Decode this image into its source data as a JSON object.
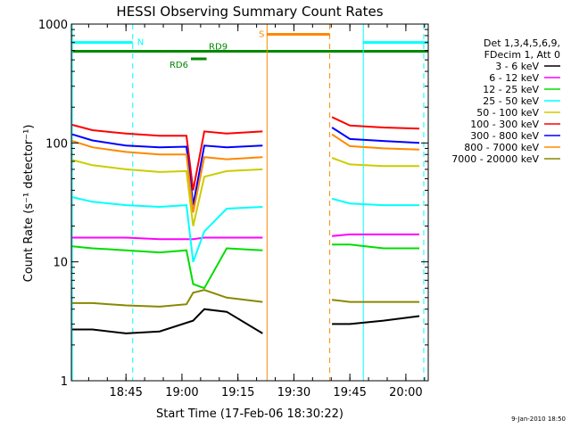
{
  "chart_data": {
    "type": "line",
    "title": "HESSI Observing Summary Count Rates",
    "xlabel": "Start Time (17-Feb-06 18:30:22)",
    "ylabel": "Count Rate (s⁻¹ detector⁻¹)",
    "yscale": "log",
    "ylim": [
      1,
      1000
    ],
    "xlim": [
      18.5061,
      20.1
    ],
    "x_ticks": [
      {
        "value": 18.75,
        "label": "18:45"
      },
      {
        "value": 19.0,
        "label": "19:00"
      },
      {
        "value": 19.25,
        "label": "19:15"
      },
      {
        "value": 19.5,
        "label": "19:30"
      },
      {
        "value": 19.75,
        "label": "19:45"
      },
      {
        "value": 20.0,
        "label": "20:00"
      }
    ],
    "y_ticks": [
      {
        "value": 1,
        "label": "1"
      },
      {
        "value": 10,
        "label": "10"
      },
      {
        "value": 100,
        "label": "100"
      },
      {
        "value": 1000,
        "label": "1000"
      }
    ],
    "legend": {
      "placement": "right",
      "header": [
        "Det 1,3,4,5,6,9,",
        "FDecim 1, Att 0"
      ],
      "entries": [
        {
          "name": "3 - 6 keV",
          "color": "#000000"
        },
        {
          "name": "6 - 12 keV",
          "color": "#ff00ff"
        },
        {
          "name": "12 - 25 keV",
          "color": "#00dd00"
        },
        {
          "name": "25 - 50 keV",
          "color": "#00ffff"
        },
        {
          "name": "50 - 100 keV",
          "color": "#cccc00"
        },
        {
          "name": "100 - 300 keV",
          "color": "#ff0000"
        },
        {
          "name": "300 - 800 keV",
          "color": "#0000ff"
        },
        {
          "name": "800 - 7000 keV",
          "color": "#ff8800"
        },
        {
          "name": "7000 - 20000 keV",
          "color": "#888800"
        }
      ]
    },
    "gaps": [
      [
        19.38,
        19.66
      ]
    ],
    "series": [
      {
        "name": "3 - 6 keV",
        "color": "#000000",
        "x": [
          18.51,
          18.6,
          18.75,
          18.9,
          19.05,
          19.1,
          19.2,
          19.36,
          19.67,
          19.75,
          19.9,
          20.06
        ],
        "y": [
          2.7,
          2.7,
          2.5,
          2.6,
          3.2,
          4.0,
          3.8,
          2.5,
          3.0,
          3.0,
          3.2,
          3.5
        ]
      },
      {
        "name": "6 - 12 keV",
        "color": "#ff00ff",
        "x": [
          18.51,
          18.6,
          18.75,
          18.9,
          19.05,
          19.1,
          19.2,
          19.36,
          19.67,
          19.75,
          19.9,
          20.06
        ],
        "y": [
          16,
          16,
          16,
          15.5,
          15.5,
          16,
          16,
          16,
          16.5,
          17,
          17,
          17
        ]
      },
      {
        "name": "12 - 25 keV",
        "color": "#00dd00",
        "x": [
          18.51,
          18.6,
          18.75,
          18.9,
          19.02,
          19.05,
          19.1,
          19.2,
          19.36,
          19.67,
          19.75,
          19.9,
          20.06
        ],
        "y": [
          13.5,
          13,
          12.5,
          12,
          12.5,
          6.5,
          6.0,
          13,
          12.5,
          14,
          14,
          13,
          13
        ]
      },
      {
        "name": "25 - 50 keV",
        "color": "#00ffff",
        "x": [
          18.51,
          18.6,
          18.75,
          18.9,
          19.02,
          19.05,
          19.1,
          19.2,
          19.36,
          19.67,
          19.75,
          19.9,
          20.06
        ],
        "y": [
          35,
          32,
          30,
          29,
          30,
          10,
          18,
          28,
          29,
          34,
          31,
          30,
          30
        ]
      },
      {
        "name": "50 - 100 keV",
        "color": "#cccc00",
        "x": [
          18.51,
          18.6,
          18.75,
          18.9,
          19.02,
          19.05,
          19.1,
          19.2,
          19.36,
          19.67,
          19.75,
          19.9,
          20.06
        ],
        "y": [
          72,
          65,
          60,
          57,
          58,
          20,
          52,
          58,
          60,
          75,
          66,
          64,
          64
        ]
      },
      {
        "name": "100 - 300 keV",
        "color": "#ff0000",
        "x": [
          18.51,
          18.6,
          18.75,
          18.9,
          19.02,
          19.05,
          19.1,
          19.2,
          19.36,
          19.67,
          19.75,
          19.9,
          20.06
        ],
        "y": [
          142,
          128,
          120,
          115,
          115,
          40,
          125,
          120,
          125,
          165,
          140,
          135,
          132
        ]
      },
      {
        "name": "300 - 800 keV",
        "color": "#0000ff",
        "x": [
          18.51,
          18.6,
          18.75,
          18.9,
          19.02,
          19.05,
          19.1,
          19.2,
          19.36,
          19.67,
          19.75,
          19.9,
          20.06
        ],
        "y": [
          118,
          105,
          95,
          92,
          93,
          30,
          95,
          92,
          95,
          135,
          108,
          104,
          100
        ]
      },
      {
        "name": "800 - 7000 keV",
        "color": "#ff8800",
        "x": [
          18.51,
          18.6,
          18.75,
          18.9,
          19.02,
          19.05,
          19.1,
          19.2,
          19.36,
          19.67,
          19.75,
          19.9,
          20.06
        ],
        "y": [
          104,
          92,
          84,
          80,
          80,
          26,
          76,
          73,
          76,
          118,
          94,
          90,
          88
        ]
      },
      {
        "name": "7000 - 20000 keV",
        "color": "#888800",
        "x": [
          18.51,
          18.6,
          18.75,
          18.9,
          19.02,
          19.05,
          19.1,
          19.2,
          19.36,
          19.67,
          19.75,
          19.9,
          20.06
        ],
        "y": [
          4.5,
          4.5,
          4.3,
          4.2,
          4.4,
          5.5,
          5.8,
          5.0,
          4.6,
          4.8,
          4.6,
          4.6,
          4.6
        ]
      }
    ],
    "annotations": {
      "bars": [
        {
          "label": "N",
          "color": "#00ffff",
          "y": 700,
          "segments": [
            [
              18.5061,
              18.78
            ],
            [
              19.81,
              20.1
            ]
          ]
        },
        {
          "label": "RD9",
          "color": "#008800",
          "y": 590,
          "segments": [
            [
              18.5061,
              20.1
            ]
          ]
        },
        {
          "label": "RD6",
          "color": "#008800",
          "y": 510,
          "segments": [
            [
              19.04,
              19.11
            ]
          ]
        },
        {
          "label": "S",
          "color": "#ff8800",
          "y": 820,
          "segments": [
            [
              19.38,
              19.66
            ]
          ]
        }
      ],
      "vlines": [
        {
          "x": 18.51,
          "color": "#00ffff",
          "style": "solid"
        },
        {
          "x": 18.78,
          "color": "#00ffff",
          "style": "dashed"
        },
        {
          "x": 19.38,
          "color": "#ff8800",
          "style": "solid"
        },
        {
          "x": 19.66,
          "color": "#ff8800",
          "style": "dashed"
        },
        {
          "x": 19.81,
          "color": "#00ffff",
          "style": "solid"
        },
        {
          "x": 20.08,
          "color": "#00ffff",
          "style": "dashed"
        }
      ]
    }
  },
  "footer": {
    "datestamp": "9-Jan-2010 18:50"
  }
}
